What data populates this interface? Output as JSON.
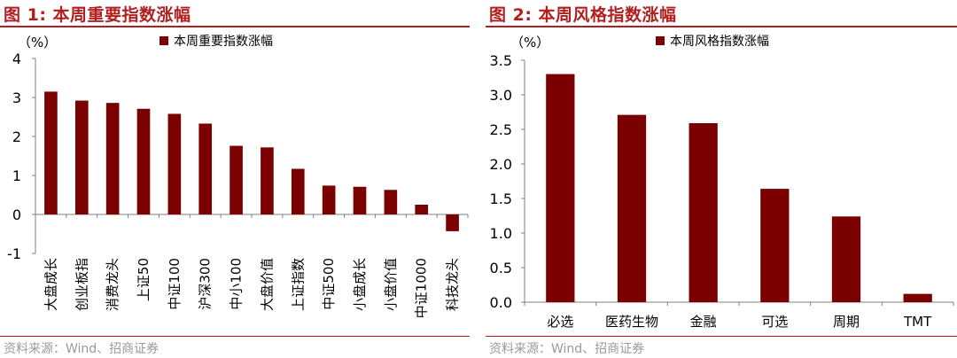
{
  "panels": [
    {
      "title": "图 1:  本周重要指数涨幅",
      "source": "资料来源：Wind、招商证券"
    },
    {
      "title": "图 2:  本周风格指数涨幅",
      "source": "资料来源：Wind、招商证券"
    }
  ],
  "chart_data": [
    {
      "type": "bar",
      "unit_label": "（%）",
      "legend": "本周重要指数涨幅",
      "legend_position": "top",
      "categories": [
        "大盘成长",
        "创业板指",
        "消费龙头",
        "上证50",
        "中证100",
        "沪深300",
        "中小100",
        "大盘价值",
        "上证指数",
        "中证500",
        "小盘成长",
        "小盘价值",
        "中证1000",
        "科技龙头"
      ],
      "values": [
        3.15,
        2.92,
        2.86,
        2.71,
        2.58,
        2.33,
        1.76,
        1.72,
        1.17,
        0.74,
        0.71,
        0.63,
        0.25,
        -0.43
      ],
      "yticks": [
        "4",
        "3",
        "2",
        "1",
        "0",
        "-1"
      ],
      "ylim": [
        -1,
        4
      ],
      "bar_color": "#7b0000",
      "grid": false
    },
    {
      "type": "bar",
      "unit_label": "（%）",
      "legend": "本周风格指数涨幅",
      "legend_position": "top",
      "categories": [
        "必选",
        "医药生物",
        "金融",
        "可选",
        "周期",
        "TMT"
      ],
      "values": [
        3.3,
        2.71,
        2.59,
        1.64,
        1.24,
        0.12
      ],
      "yticks": [
        "3.5",
        "3.0",
        "2.5",
        "2.0",
        "1.5",
        "1.0",
        "0.5",
        "0.0"
      ],
      "ylim": [
        0,
        3.5
      ],
      "bar_color": "#7b0000",
      "grid": false
    }
  ]
}
